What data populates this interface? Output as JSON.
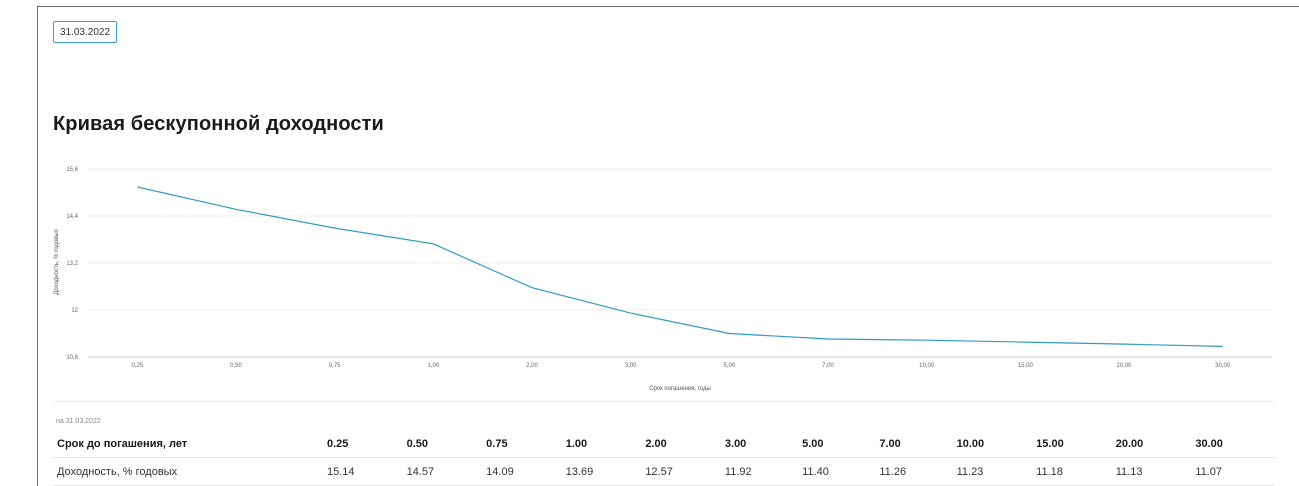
{
  "date_button": "31.03.2022",
  "title": "Кривая бескупонной доходности",
  "chart_data": {
    "type": "line",
    "title": "Кривая бескупонной доходности",
    "xlabel": "Срок погашения, годы",
    "ylabel": "Доходность, % годовых",
    "categories": [
      "0,25",
      "0,50",
      "0,75",
      "1,00",
      "2,00",
      "3,00",
      "5,00",
      "7,00",
      "10,00",
      "15,00",
      "20,00",
      "30,00"
    ],
    "series": [
      {
        "values": [
          15.14,
          14.57,
          14.09,
          13.69,
          12.57,
          11.92,
          11.4,
          11.26,
          11.23,
          11.18,
          11.13,
          11.07
        ]
      }
    ],
    "yticks": [
      "10,8",
      "12",
      "13,2",
      "14,4",
      "15,6"
    ],
    "ytick_values": [
      10.8,
      12.0,
      13.2,
      14.4,
      15.6
    ],
    "ylim": [
      10.8,
      15.6
    ],
    "grid": true,
    "line_color": "#2f9bc4"
  },
  "table": {
    "as_of": "на 31.03.2022",
    "header_label": "Срок до погашения, лет",
    "row_label": "Доходность, % годовых",
    "terms": [
      "0.25",
      "0.50",
      "0.75",
      "1.00",
      "2.00",
      "3.00",
      "5.00",
      "7.00",
      "10.00",
      "15.00",
      "20.00",
      "30.00"
    ],
    "yields": [
      "15.14",
      "14.57",
      "14.09",
      "13.69",
      "12.57",
      "11.92",
      "11.40",
      "11.26",
      "11.23",
      "11.18",
      "11.13",
      "11.07"
    ]
  }
}
